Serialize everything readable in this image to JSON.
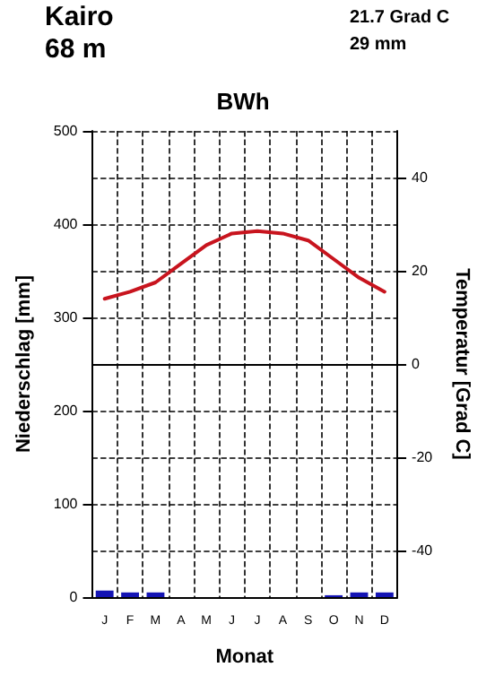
{
  "chart_data": {
    "type": "bar",
    "title": "BWh",
    "xlabel": "Monat",
    "ylabel": "Niederschlag [mm]",
    "y2label": "Temperatur [Grad C]",
    "annotations": [
      "Kairo",
      "68 m",
      "21.7 Grad C",
      "29 mm"
    ],
    "categories": [
      "J",
      "F",
      "M",
      "A",
      "M",
      "J",
      "J",
      "A",
      "S",
      "O",
      "N",
      "D"
    ],
    "series": [
      {
        "color": "#1414b4",
        "values": [
          7,
          5,
          5,
          0,
          0,
          0,
          0,
          0,
          0,
          2,
          5,
          5
        ]
      },
      {
        "type": "line",
        "axis": "y2",
        "color": "#c8141e",
        "values": [
          14,
          15.5,
          17.5,
          21.5,
          25.5,
          28,
          28.5,
          28,
          26.5,
          22.5,
          18.5,
          15.5
        ]
      }
    ],
    "ylim": [
      0,
      500
    ],
    "yticks": [
      0,
      100,
      200,
      300,
      400,
      500
    ],
    "y2lim": [
      -50,
      50
    ],
    "y2ticks": [
      -40,
      -20,
      0,
      20,
      40
    ],
    "ref_lines": [
      {
        "axis": "y2",
        "value": 0,
        "color": "#000000",
        "line_style": "solid"
      }
    ],
    "grid": true
  }
}
